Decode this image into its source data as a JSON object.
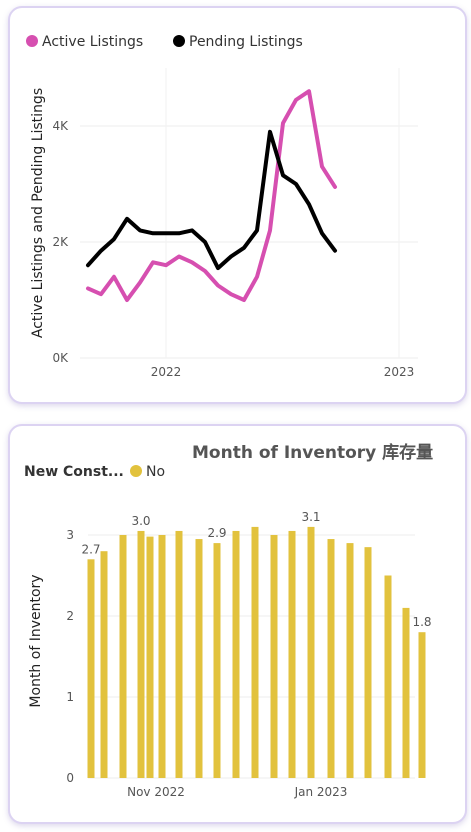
{
  "chart_data": [
    {
      "type": "line",
      "title": "",
      "xlabel": "",
      "ylabel": "Active Listings and Pending Listings",
      "x_tick_labels": [
        "2022",
        "2023"
      ],
      "y_tick_labels": [
        "0K",
        "2K",
        "4K"
      ],
      "ylim": [
        0,
        5000
      ],
      "grid": true,
      "legend_position": "top-left",
      "series": [
        {
          "name": "Active Listings",
          "color": "#d64fb0",
          "x": [
            "2021-07",
            "2021-08",
            "2021-09",
            "2021-10",
            "2021-11",
            "2021-12",
            "2022-01",
            "2022-02",
            "2022-03",
            "2022-04",
            "2022-05",
            "2022-06",
            "2022-07",
            "2022-08",
            "2022-09",
            "2022-10",
            "2022-11",
            "2022-12",
            "2023-01",
            "2023-02"
          ],
          "values": [
            1200,
            1100,
            1400,
            1000,
            1300,
            1650,
            1600,
            1750,
            1650,
            1500,
            1250,
            1100,
            1000,
            1400,
            2200,
            4050,
            4450,
            4600,
            3300,
            2950
          ]
        },
        {
          "name": "Pending Listings",
          "color": "#000000",
          "x": [
            "2021-07",
            "2021-08",
            "2021-09",
            "2021-10",
            "2021-11",
            "2021-12",
            "2022-01",
            "2022-02",
            "2022-03",
            "2022-04",
            "2022-05",
            "2022-06",
            "2022-07",
            "2022-08",
            "2022-09",
            "2022-10",
            "2022-11",
            "2022-12",
            "2023-01",
            "2023-02"
          ],
          "values": [
            1600,
            1850,
            2050,
            2400,
            2200,
            2150,
            2150,
            2150,
            2200,
            2000,
            1550,
            1750,
            1900,
            2200,
            3900,
            3150,
            3000,
            2650,
            2150,
            1850
          ]
        }
      ]
    },
    {
      "type": "bar",
      "title": "Month of Inventory 库存量",
      "xlabel": "",
      "ylabel": "Month of Inventory",
      "legend_title": "New Const...",
      "x_tick_labels": [
        "Nov 2022",
        "Jan 2023"
      ],
      "y_tick_labels": [
        "0",
        "1",
        "2",
        "3"
      ],
      "ylim": [
        0,
        3.3
      ],
      "grid": true,
      "legend_position": "top-left",
      "series": [
        {
          "name": "No",
          "color": "#e2c23d",
          "values": [
            2.7,
            2.8,
            3.0,
            3.05,
            2.98,
            3.0,
            3.05,
            2.95,
            2.9,
            3.05,
            3.1,
            3.0,
            3.05,
            3.1,
            2.95,
            2.9,
            2.85,
            2.5,
            2.1,
            1.8
          ]
        }
      ],
      "data_labels": [
        {
          "index": 0,
          "text": "2.7"
        },
        {
          "index": 3,
          "text": "3.0"
        },
        {
          "index": 8,
          "text": "2.9"
        },
        {
          "index": 13,
          "text": "3.1"
        },
        {
          "index": 19,
          "text": "1.8"
        }
      ]
    }
  ]
}
